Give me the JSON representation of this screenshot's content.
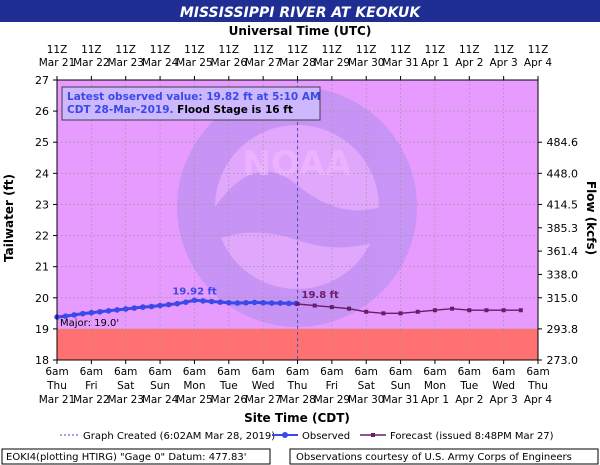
{
  "header": {
    "title": "MISSISSIPPI RIVER AT KEOKUK",
    "top_axis_title": "Universal Time (UTC)"
  },
  "chart_data": {
    "type": "line",
    "title": "MISSISSIPPI RIVER AT KEOKUK",
    "xlabel_top": "Universal Time (UTC)",
    "xlabel_bottom": "Site Time (CDT)",
    "ylabel_left": "Tailwater (ft)",
    "ylabel_right": "Flow (kcfs)",
    "ylim": [
      18,
      27
    ],
    "xlim": [
      "2019-03-21 06:00",
      "2019-04-04 06:00"
    ],
    "grid": true,
    "y_ticks": [
      "18",
      "19",
      "20",
      "21",
      "22",
      "23",
      "24",
      "25",
      "26",
      "27"
    ],
    "right_ticks": [
      {
        "stage": 18.0,
        "label": "273.0"
      },
      {
        "stage": 19.0,
        "label": "293.8"
      },
      {
        "stage": 20.0,
        "label": "315.0"
      },
      {
        "stage": 20.75,
        "label": "338.0"
      },
      {
        "stage": 21.5,
        "label": "361.4"
      },
      {
        "stage": 22.25,
        "label": "385.3"
      },
      {
        "stage": 23.0,
        "label": "414.5"
      },
      {
        "stage": 24.0,
        "label": "448.0"
      },
      {
        "stage": 25.0,
        "label": "484.6"
      }
    ],
    "top_ticks": [
      {
        "time": "11Z",
        "date": "Mar 21"
      },
      {
        "time": "11Z",
        "date": "Mar 22"
      },
      {
        "time": "11Z",
        "date": "Mar 23"
      },
      {
        "time": "11Z",
        "date": "Mar 24"
      },
      {
        "time": "11Z",
        "date": "Mar 25"
      },
      {
        "time": "11Z",
        "date": "Mar 26"
      },
      {
        "time": "11Z",
        "date": "Mar 27"
      },
      {
        "time": "11Z",
        "date": "Mar 28"
      },
      {
        "time": "11Z",
        "date": "Mar 29"
      },
      {
        "time": "11Z",
        "date": "Mar 30"
      },
      {
        "time": "11Z",
        "date": "Mar 31"
      },
      {
        "time": "11Z",
        "date": "Apr 1"
      },
      {
        "time": "11Z",
        "date": "Apr 2"
      },
      {
        "time": "11Z",
        "date": "Apr 3"
      },
      {
        "time": "11Z",
        "date": "Apr 4"
      }
    ],
    "bottom_ticks": [
      {
        "time": "6am",
        "day": "Thu",
        "date": "Mar 21"
      },
      {
        "time": "6am",
        "day": "Fri",
        "date": "Mar 22"
      },
      {
        "time": "6am",
        "day": "Sat",
        "date": "Mar 23"
      },
      {
        "time": "6am",
        "day": "Sun",
        "date": "Mar 24"
      },
      {
        "time": "6am",
        "day": "Mon",
        "date": "Mar 25"
      },
      {
        "time": "6am",
        "day": "Tue",
        "date": "Mar 26"
      },
      {
        "time": "6am",
        "day": "Wed",
        "date": "Mar 27"
      },
      {
        "time": "6am",
        "day": "Thu",
        "date": "Mar 28"
      },
      {
        "time": "6am",
        "day": "Fri",
        "date": "Mar 29"
      },
      {
        "time": "6am",
        "day": "Sat",
        "date": "Mar 30"
      },
      {
        "time": "6am",
        "day": "Sun",
        "date": "Mar 31"
      },
      {
        "time": "6am",
        "day": "Mon",
        "date": "Apr 1"
      },
      {
        "time": "6am",
        "day": "Tue",
        "date": "Apr 2"
      },
      {
        "time": "6am",
        "day": "Wed",
        "date": "Apr 3"
      },
      {
        "time": "6am",
        "day": "Thu",
        "date": "Apr 4"
      }
    ],
    "thresholds": {
      "major": {
        "label": "Major: 19.0'",
        "value": 19.0,
        "color": "#ff7070"
      },
      "flood_stage": 16,
      "background_color": "#e79bff"
    },
    "annotations": {
      "latest_value_line1": "Latest observed value: 19.82 ft at 5:10 AM",
      "latest_value_line2": "CDT 28-Mar-2019.",
      "flood_stage_text": "Flood Stage is 16 ft",
      "peak_label": "19.92 ft",
      "forecast_start_label": "19.8 ft",
      "graph_created_time": "2019-03-28 06:02"
    },
    "series": [
      {
        "name": "Observed",
        "color": "#3a49e8",
        "points": [
          [
            "2019-03-21 06:00",
            19.38
          ],
          [
            "2019-03-21 12:00",
            19.41
          ],
          [
            "2019-03-21 18:00",
            19.45
          ],
          [
            "2019-03-22 00:00",
            19.49
          ],
          [
            "2019-03-22 06:00",
            19.52
          ],
          [
            "2019-03-22 12:00",
            19.55
          ],
          [
            "2019-03-22 18:00",
            19.58
          ],
          [
            "2019-03-23 00:00",
            19.61
          ],
          [
            "2019-03-23 06:00",
            19.64
          ],
          [
            "2019-03-23 12:00",
            19.67
          ],
          [
            "2019-03-23 18:00",
            19.7
          ],
          [
            "2019-03-24 00:00",
            19.72
          ],
          [
            "2019-03-24 06:00",
            19.75
          ],
          [
            "2019-03-24 12:00",
            19.78
          ],
          [
            "2019-03-24 18:00",
            19.81
          ],
          [
            "2019-03-25 00:00",
            19.86
          ],
          [
            "2019-03-25 06:00",
            19.92
          ],
          [
            "2019-03-25 12:00",
            19.9
          ],
          [
            "2019-03-25 18:00",
            19.88
          ],
          [
            "2019-03-26 00:00",
            19.86
          ],
          [
            "2019-03-26 06:00",
            19.84
          ],
          [
            "2019-03-26 12:00",
            19.83
          ],
          [
            "2019-03-26 18:00",
            19.84
          ],
          [
            "2019-03-27 00:00",
            19.85
          ],
          [
            "2019-03-27 06:00",
            19.84
          ],
          [
            "2019-03-27 12:00",
            19.83
          ],
          [
            "2019-03-27 18:00",
            19.83
          ],
          [
            "2019-03-28 00:00",
            19.82
          ],
          [
            "2019-03-28 05:10",
            19.82
          ]
        ]
      },
      {
        "name": "Forecast (issued 8:48PM Mar 27)",
        "color": "#6a1b6a",
        "points": [
          [
            "2019-03-28 06:00",
            19.8
          ],
          [
            "2019-03-28 18:00",
            19.75
          ],
          [
            "2019-03-29 06:00",
            19.7
          ],
          [
            "2019-03-29 18:00",
            19.65
          ],
          [
            "2019-03-30 06:00",
            19.55
          ],
          [
            "2019-03-30 18:00",
            19.5
          ],
          [
            "2019-03-31 06:00",
            19.5
          ],
          [
            "2019-03-31 18:00",
            19.55
          ],
          [
            "2019-04-01 06:00",
            19.6
          ],
          [
            "2019-04-01 18:00",
            19.65
          ],
          [
            "2019-04-02 06:00",
            19.6
          ],
          [
            "2019-04-02 18:00",
            19.6
          ],
          [
            "2019-04-03 06:00",
            19.6
          ],
          [
            "2019-04-03 18:00",
            19.6
          ]
        ]
      }
    ],
    "legend": {
      "placement": "bottom",
      "graph_created": "Graph Created (6:02AM Mar 28, 2019)",
      "observed": "Observed",
      "forecast": "Forecast (issued 8:48PM Mar 27)"
    }
  },
  "footer": {
    "left": "EOKI4(plotting HTIRG) \"Gage 0\" Datum: 477.83'",
    "right": "Observations courtesy of U.S. Army Corps of Engineers"
  }
}
